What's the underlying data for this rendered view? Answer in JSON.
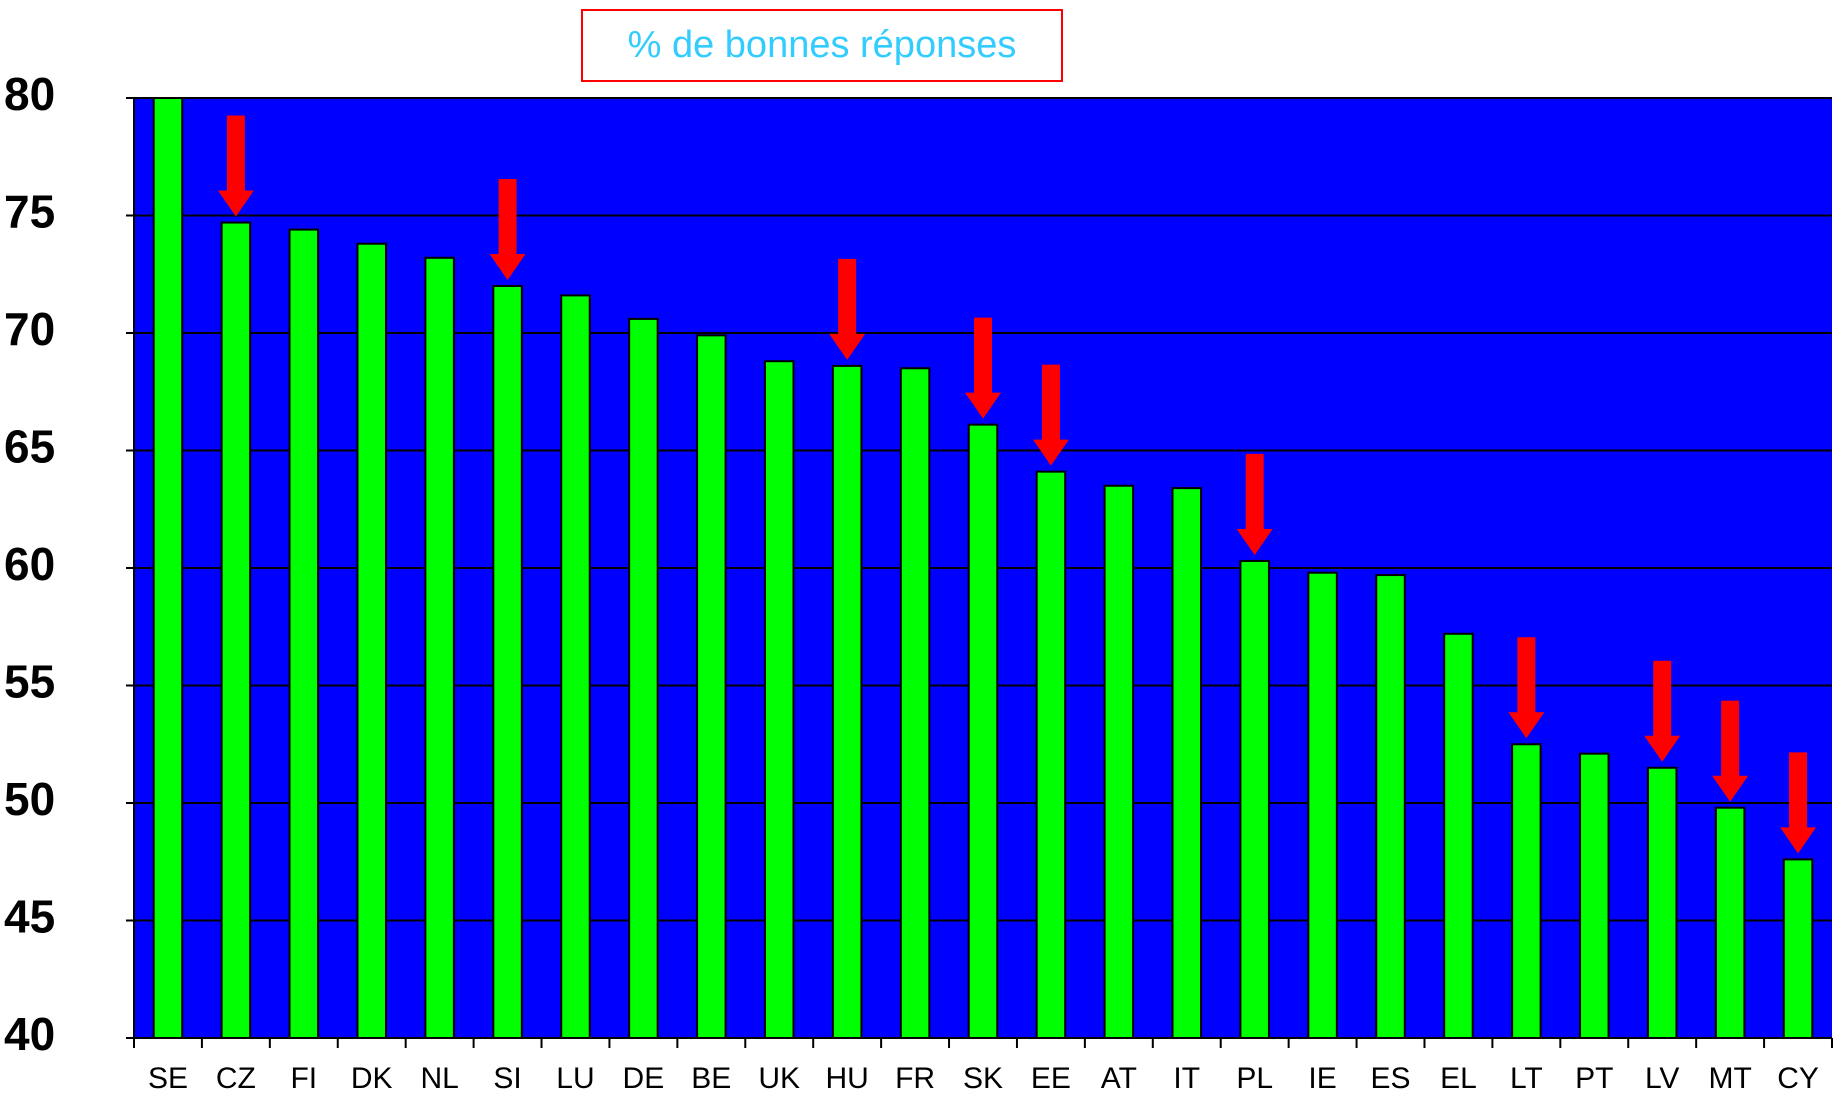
{
  "chart_data": {
    "type": "bar",
    "title": "% de bonnes réponses",
    "categories": [
      "SE",
      "CZ",
      "FI",
      "DK",
      "NL",
      "SI",
      "LU",
      "DE",
      "BE",
      "UK",
      "HU",
      "FR",
      "SK",
      "EE",
      "AT",
      "IT",
      "PL",
      "IE",
      "ES",
      "EL",
      "LT",
      "PT",
      "LV",
      "MT",
      "CY"
    ],
    "values": [
      80,
      74.7,
      74.4,
      73.8,
      73.2,
      72.0,
      71.6,
      70.6,
      69.9,
      68.8,
      68.6,
      68.5,
      66.1,
      64.1,
      63.5,
      63.4,
      60.3,
      59.8,
      59.7,
      57.2,
      52.5,
      52.1,
      51.5,
      49.8,
      47.6
    ],
    "color": "#00ff00",
    "background": "#0000ff",
    "title_color": "#33ccff",
    "title_border": "#ff0000",
    "arrows": [
      1,
      5,
      10,
      12,
      13,
      16,
      20,
      22,
      23,
      24
    ],
    "arrow_color": "#ff0000",
    "ylim": [
      40,
      80
    ],
    "yticks": [
      40,
      45,
      50,
      55,
      60,
      65,
      70,
      75,
      80
    ],
    "grid": true
  }
}
